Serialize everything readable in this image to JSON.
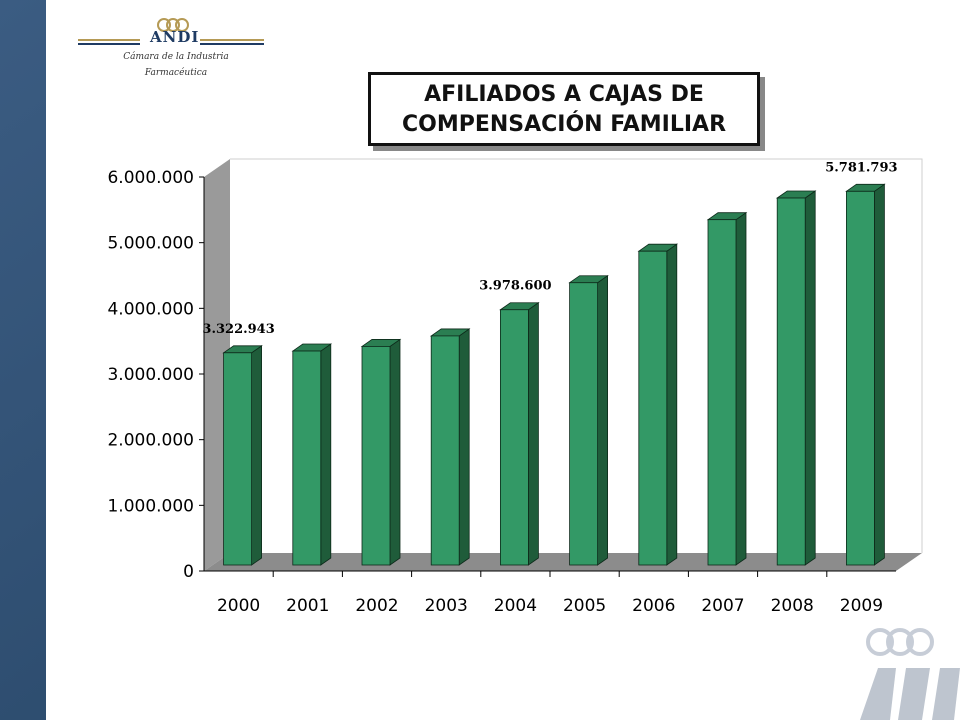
{
  "logo": {
    "brand": "ANDI",
    "subtitle_line1": "Cámara de la Industria",
    "subtitle_line2": "Farmacéutica",
    "icon": "andi-logo-icon",
    "watermark_icon": "andi-watermark-logo-icon"
  },
  "colors": {
    "frame": "#2c4a6e",
    "bar_front": "#339966",
    "bar_top": "#2b7e52",
    "bar_side": "#1f5c3a",
    "floor": "#8c8c8c",
    "wall_side": "#9a9a9a"
  },
  "chart_data": {
    "type": "bar",
    "title": "AFILIADOS A CAJAS DE COMPENSACIÓN FAMILIAR",
    "title_lines": [
      "AFILIADOS A CAJAS DE",
      "COMPENSACIÓN FAMILIAR"
    ],
    "categories": [
      "2000",
      "2001",
      "2002",
      "2003",
      "2004",
      "2005",
      "2006",
      "2007",
      "2008",
      "2009"
    ],
    "values": [
      3322943,
      3350000,
      3420000,
      3580000,
      3978600,
      4390000,
      4870000,
      5350000,
      5680000,
      5781793
    ],
    "data_labels": [
      {
        "index": 0,
        "text": "3.322.943"
      },
      {
        "index": 4,
        "text": "3.978.600"
      },
      {
        "index": 9,
        "text": "5.781.793"
      }
    ],
    "y_ticks": [
      0,
      1000000,
      2000000,
      3000000,
      4000000,
      5000000,
      6000000
    ],
    "y_tick_labels": [
      "0",
      "1.000.000",
      "2.000.000",
      "3.000.000",
      "4.000.000",
      "5.000.000",
      "6.000.000"
    ],
    "ylim": [
      0,
      6000000
    ],
    "xlabel": "",
    "ylabel": "",
    "grid": false,
    "legend": "none",
    "style": "3d"
  }
}
